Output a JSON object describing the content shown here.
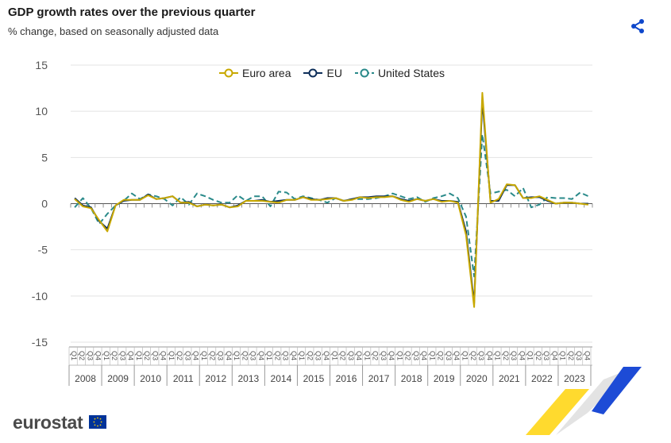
{
  "header": {
    "title": "GDP growth rates over the previous quarter",
    "subtitle": "% change, based on seasonally adjusted data"
  },
  "branding": {
    "logo_text": "eurostat",
    "flag_icon": "eu-flag-icon",
    "share_icon": "share-icon"
  },
  "colors": {
    "euro_area": "#c8a800",
    "eu": "#0e2f5a",
    "us": "#2a8a8a",
    "accent": "#0e47cb"
  },
  "chart_data": {
    "type": "line",
    "title": "GDP growth rates over the previous quarter",
    "subtitle": "% change, based on seasonally adjusted data",
    "ylim": [
      -15,
      15
    ],
    "yticks": [
      15,
      10,
      5,
      0,
      -5,
      -10,
      -15
    ],
    "grid": true,
    "legend_position": "top-center",
    "quarter_labels": [
      "Q1",
      "Q2",
      "Q3",
      "Q4"
    ],
    "years": [
      "2008",
      "2009",
      "2010",
      "2011",
      "2012",
      "2013",
      "2014",
      "2015",
      "2016",
      "2017",
      "2018",
      "2019",
      "2020",
      "2021",
      "2022",
      "2023"
    ],
    "series": [
      {
        "name": "Euro area",
        "style": "solid",
        "color": "#c8a800",
        "values": [
          0.5,
          -0.3,
          -0.5,
          -1.8,
          -3.0,
          -0.2,
          0.4,
          0.4,
          0.4,
          0.9,
          0.5,
          0.6,
          0.8,
          0.1,
          0.1,
          -0.3,
          -0.1,
          -0.2,
          -0.1,
          -0.4,
          -0.3,
          0.3,
          0.3,
          0.3,
          0.2,
          0.1,
          0.4,
          0.4,
          0.7,
          0.4,
          0.4,
          0.5,
          0.6,
          0.3,
          0.4,
          0.7,
          0.6,
          0.7,
          0.7,
          0.8,
          0.4,
          0.2,
          0.5,
          0.3,
          0.5,
          0.2,
          0.3,
          0.1,
          -3.4,
          -11.2,
          12.0,
          0.1,
          0.5,
          2.1,
          2.0,
          0.6,
          0.6,
          0.8,
          0.4,
          0.0,
          0.1,
          0.1,
          0.0,
          -0.1
        ]
      },
      {
        "name": "EU",
        "style": "solid",
        "color": "#0e2f5a",
        "values": [
          0.6,
          -0.2,
          -0.4,
          -1.9,
          -2.7,
          -0.2,
          0.3,
          0.4,
          0.4,
          1.0,
          0.5,
          0.6,
          0.8,
          0.1,
          0.2,
          -0.3,
          -0.1,
          -0.2,
          -0.1,
          -0.4,
          -0.2,
          0.3,
          0.3,
          0.4,
          0.2,
          0.3,
          0.4,
          0.4,
          0.7,
          0.5,
          0.4,
          0.6,
          0.6,
          0.3,
          0.5,
          0.7,
          0.7,
          0.8,
          0.8,
          0.8,
          0.5,
          0.3,
          0.5,
          0.3,
          0.5,
          0.3,
          0.3,
          0.2,
          -3.0,
          -10.8,
          11.2,
          0.3,
          0.3,
          2.0,
          2.0,
          0.6,
          0.7,
          0.7,
          0.3,
          0.0,
          0.1,
          0.1,
          0.0,
          0.0
        ]
      },
      {
        "name": "United States",
        "style": "dashed",
        "color": "#2a8a8a",
        "values": [
          -0.4,
          0.6,
          -0.5,
          -2.2,
          -1.1,
          -0.2,
          0.3,
          1.1,
          0.5,
          1.0,
          0.8,
          0.5,
          -0.2,
          0.7,
          -0.1,
          1.1,
          0.8,
          0.4,
          0.1,
          0.1,
          0.9,
          0.3,
          0.8,
          0.8,
          -0.3,
          1.3,
          1.2,
          0.5,
          0.8,
          0.6,
          0.4,
          0.1,
          0.6,
          0.3,
          0.5,
          0.5,
          0.5,
          0.6,
          0.8,
          1.1,
          0.8,
          0.5,
          0.7,
          0.2,
          0.6,
          0.8,
          1.1,
          0.6,
          -1.4,
          -7.9,
          7.5,
          1.1,
          1.3,
          1.5,
          0.8,
          1.7,
          -0.4,
          -0.1,
          0.7,
          0.6,
          0.6,
          0.5,
          1.2,
          0.8
        ]
      }
    ]
  }
}
